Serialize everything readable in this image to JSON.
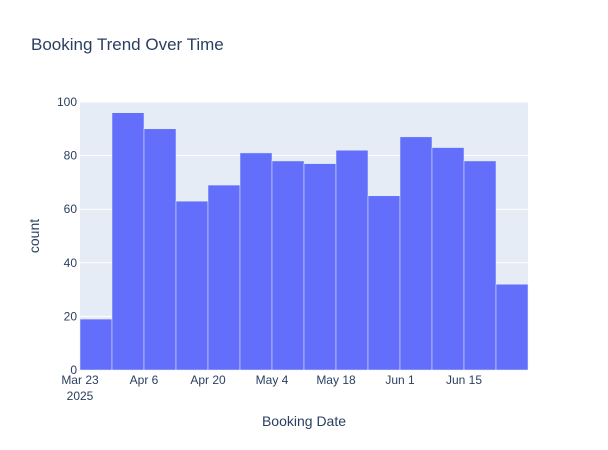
{
  "chart_data": {
    "type": "bar",
    "title": "Booking Trend Over Time",
    "xlabel": "Booking Date",
    "ylabel": "count",
    "ylim": [
      0,
      100
    ],
    "y_ticks": [
      0,
      20,
      40,
      60,
      80,
      100
    ],
    "x_tick_labels": [
      "Mar 23",
      "Apr 6",
      "Apr 20",
      "May 4",
      "May 18",
      "Jun 1",
      "Jun 15"
    ],
    "x_tick_sublabel": "2025",
    "bins": [
      {
        "start": "2025-03-23",
        "end": "2025-03-30",
        "value": 19
      },
      {
        "start": "2025-03-30",
        "end": "2025-04-06",
        "value": 96
      },
      {
        "start": "2025-04-06",
        "end": "2025-04-13",
        "value": 90
      },
      {
        "start": "2025-04-13",
        "end": "2025-04-20",
        "value": 63
      },
      {
        "start": "2025-04-20",
        "end": "2025-04-27",
        "value": 69
      },
      {
        "start": "2025-04-27",
        "end": "2025-05-04",
        "value": 81
      },
      {
        "start": "2025-05-04",
        "end": "2025-05-11",
        "value": 78
      },
      {
        "start": "2025-05-11",
        "end": "2025-05-18",
        "value": 77
      },
      {
        "start": "2025-05-18",
        "end": "2025-05-25",
        "value": 82
      },
      {
        "start": "2025-05-25",
        "end": "2025-06-01",
        "value": 65
      },
      {
        "start": "2025-06-01",
        "end": "2025-06-08",
        "value": 87
      },
      {
        "start": "2025-06-08",
        "end": "2025-06-15",
        "value": 83
      },
      {
        "start": "2025-06-15",
        "end": "2025-06-22",
        "value": 78
      },
      {
        "start": "2025-06-22",
        "end": "2025-06-29",
        "value": 32
      }
    ],
    "bar_color": "#636efa",
    "plot_bg": "#e5ecf6",
    "grid": true
  }
}
